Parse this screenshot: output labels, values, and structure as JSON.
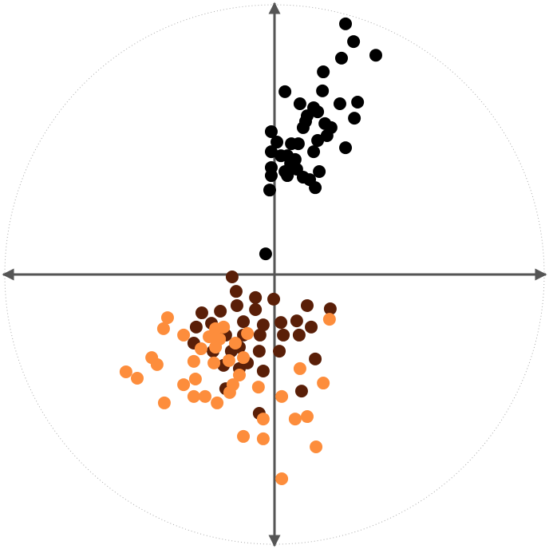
{
  "chart_data": {
    "type": "scatter",
    "xlim": [
      -10.24,
      10.24
    ],
    "ylim": [
      -10.24,
      10.24
    ],
    "series": [
      {
        "color": "#000000",
        "x": [
          2.65,
          2.95,
          3.78,
          2.5,
          1.82,
          0.39,
          1.79,
          0.95,
          1.46,
          2.44,
          3.1,
          1.22,
          1.61,
          2.98,
          1.07,
          1.88,
          2.11,
          -0.12,
          0.63,
          0.89,
          1.61,
          2.65,
          1.46,
          -0.12,
          0.24,
          0.48,
          0.77,
          -0.12,
          0.39,
          0.83,
          1.67,
          1.07,
          1.31,
          1.52,
          0.48,
          -0.12,
          -0.18,
          -0.33,
          1.96,
          1.16,
          0.09,
          0.6
        ],
        "values": [
          9.35,
          8.69,
          8.18,
          8.07,
          7.56,
          6.82,
          6.85,
          6.37,
          6.22,
          6.37,
          6.43,
          5.92,
          6.07,
          5.83,
          5.48,
          5.63,
          5.48,
          5.33,
          4.88,
          4.88,
          5.0,
          4.73,
          4.58,
          4.58,
          4.43,
          4.43,
          4.29,
          3.99,
          3.84,
          3.93,
          3.84,
          3.63,
          3.54,
          3.24,
          3.69,
          3.69,
          3.15,
          0.77,
          5.18,
          5.71,
          4.94,
          4.14
        ]
      },
      {
        "color": "#5a1f08",
        "x": [
          -1.58,
          -1.43,
          -0.71,
          -0.03,
          1.22,
          2.08,
          -1.4,
          -2.02,
          -0.71,
          -2.71,
          -2.92,
          -2.35,
          -1.16,
          -0.42,
          0.24,
          0.83,
          1.37,
          -3.01,
          -1.82,
          -1.16,
          -0.54,
          0.33,
          0.92,
          -2.29,
          -1.61,
          -1.31,
          -0.57,
          0.18,
          1.52,
          -1.9,
          -1.31,
          -1.01,
          -0.42,
          -1.82,
          1.01,
          -0.57
        ],
        "values": [
          -0.09,
          -0.63,
          -0.86,
          -0.92,
          -1.16,
          -1.28,
          -1.16,
          -1.37,
          -1.31,
          -1.43,
          -1.96,
          -1.82,
          -1.76,
          -1.88,
          -1.79,
          -1.73,
          -1.96,
          -2.56,
          -2.26,
          -2.26,
          -2.26,
          -2.26,
          -2.26,
          -2.86,
          -2.86,
          -2.71,
          -2.86,
          -2.86,
          -3.15,
          -3.39,
          -3.51,
          -3.3,
          -3.6,
          -4.26,
          -4.35,
          -5.18
        ]
      },
      {
        "color": "#fd8d3c",
        "x": [
          -3.99,
          -4.14,
          2.05,
          -3.39,
          -2.2,
          -1.9,
          -2.44,
          -2.74,
          -2.05,
          -1.46,
          -4.58,
          -4.38,
          -3.01,
          -2.26,
          -1.7,
          -1.16,
          -5.54,
          -5.12,
          -3.39,
          -2.95,
          -1.31,
          0.95,
          -1.55,
          -0.6,
          1.82,
          -3.01,
          -2.59,
          -2.14,
          -1.67,
          -4.11,
          0.27,
          -0.42,
          0.77,
          1.22,
          -1.16,
          -0.42,
          1.55,
          0.27,
          -2.2,
          -1.01
        ],
        "values": [
          -1.61,
          -2.02,
          -1.67,
          -2.26,
          -2.02,
          -1.96,
          -2.32,
          -2.77,
          -2.41,
          -2.56,
          -3.1,
          -3.36,
          -3.24,
          -3.3,
          -3.21,
          -3.1,
          -3.63,
          -3.87,
          -4.11,
          -3.9,
          -3.75,
          -3.51,
          -4.11,
          -4.2,
          -4.05,
          -4.55,
          -4.55,
          -4.79,
          -4.4,
          -4.79,
          -4.55,
          -5.39,
          -5.39,
          -5.3,
          -6.04,
          -6.13,
          -6.43,
          -7.62,
          -2.71,
          -2.2
        ]
      }
    ]
  }
}
